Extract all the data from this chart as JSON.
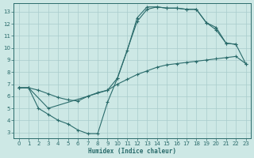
{
  "xlabel": "Humidex (Indice chaleur)",
  "bg_color": "#cde8e5",
  "line_color": "#2a6b6b",
  "grid_color": "#a8cccc",
  "xlim": [
    -0.5,
    23.5
  ],
  "ylim": [
    2.5,
    13.7
  ],
  "xticks": [
    0,
    1,
    2,
    3,
    4,
    5,
    6,
    7,
    8,
    9,
    10,
    11,
    12,
    13,
    14,
    15,
    16,
    17,
    18,
    19,
    20,
    21,
    22,
    23
  ],
  "yticks": [
    3,
    4,
    5,
    6,
    7,
    8,
    9,
    10,
    11,
    12,
    13
  ],
  "curve1_x": [
    0,
    1,
    2,
    3,
    4,
    5,
    6,
    7,
    8,
    9,
    10,
    11,
    12,
    13,
    14,
    15,
    16,
    17,
    18,
    19,
    20,
    21,
    22
  ],
  "curve1_y": [
    6.7,
    6.7,
    5.0,
    4.5,
    4.0,
    3.7,
    3.2,
    2.9,
    2.9,
    5.5,
    7.5,
    9.8,
    12.5,
    13.4,
    13.4,
    13.3,
    13.3,
    13.2,
    13.2,
    12.1,
    11.5,
    10.4,
    10.3
  ],
  "curve2_x": [
    0,
    1,
    2,
    3,
    4,
    5,
    6,
    7,
    8,
    9,
    10,
    11,
    12,
    13,
    14,
    15,
    16,
    17,
    18,
    19,
    20,
    21,
    22,
    23
  ],
  "curve2_y": [
    6.7,
    6.7,
    6.5,
    6.2,
    5.9,
    5.7,
    5.6,
    6.0,
    6.3,
    6.5,
    7.0,
    7.4,
    7.8,
    8.1,
    8.4,
    8.6,
    8.7,
    8.8,
    8.9,
    9.0,
    9.1,
    9.2,
    9.3,
    8.7
  ],
  "curve3_x": [
    0,
    1,
    3,
    9,
    10,
    12,
    13,
    14,
    15,
    16,
    17,
    18,
    19,
    20,
    21,
    22,
    23
  ],
  "curve3_y": [
    6.7,
    6.7,
    5.0,
    6.5,
    7.5,
    12.2,
    13.2,
    13.4,
    13.3,
    13.3,
    13.2,
    13.2,
    12.1,
    11.7,
    10.4,
    10.3,
    8.7
  ]
}
